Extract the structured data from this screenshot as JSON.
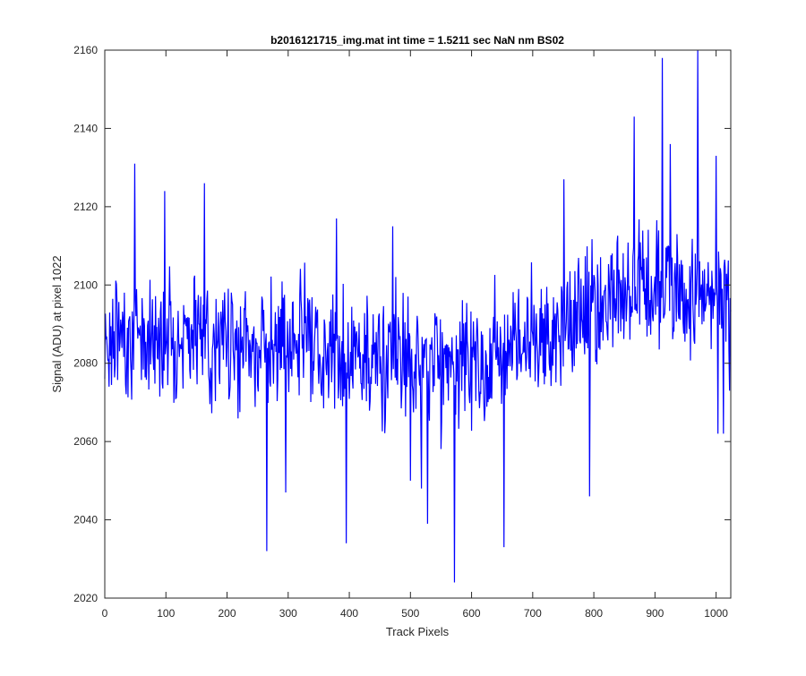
{
  "chart_data": {
    "type": "line",
    "title": "b2016121715_img.mat int time = 1.5211 sec  NaN nm BS02",
    "xlabel": "Track Pixels",
    "ylabel": "Signal (ADU) at pixel 1022",
    "xlim": [
      0,
      1024
    ],
    "ylim": [
      2020,
      2160
    ],
    "xticks": [
      0,
      100,
      200,
      300,
      400,
      500,
      600,
      700,
      800,
      900,
      1000
    ],
    "yticks": [
      2020,
      2040,
      2060,
      2080,
      2100,
      2120,
      2140,
      2160
    ],
    "series": [
      {
        "name": "Signal",
        "color": "#0000ff",
        "segments": [
          {
            "x": [
              0,
              1
            ],
            "y": [
              2076,
              2076
            ]
          },
          {
            "x": [
              1,
              180
            ],
            "y": [
              2087,
              2087
            ],
            "amp": 14,
            "seed": 17
          },
          {
            "x": [
              180,
              350
            ],
            "y": [
              2085,
              2085
            ],
            "amp": 15,
            "seed": 31
          },
          {
            "x": [
              350,
              550
            ],
            "y": [
              2082,
              2080
            ],
            "amp": 15,
            "seed": 53
          },
          {
            "x": [
              550,
              700
            ],
            "y": [
              2080,
              2084
            ],
            "amp": 15,
            "seed": 71
          },
          {
            "x": [
              700,
              860
            ],
            "y": [
              2086,
              2098
            ],
            "amp": 15,
            "seed": 97
          },
          {
            "x": [
              860,
              1024
            ],
            "y": [
              2100,
              2094
            ],
            "amp": 15,
            "seed": 113
          }
        ],
        "peaks": [
          {
            "x": 49,
            "y": 2131
          },
          {
            "x": 98,
            "y": 2124
          },
          {
            "x": 163,
            "y": 2126
          },
          {
            "x": 265,
            "y": 2032
          },
          {
            "x": 296,
            "y": 2047
          },
          {
            "x": 379,
            "y": 2117
          },
          {
            "x": 395,
            "y": 2034
          },
          {
            "x": 471,
            "y": 2115
          },
          {
            "x": 500,
            "y": 2050
          },
          {
            "x": 518,
            "y": 2048
          },
          {
            "x": 528,
            "y": 2039
          },
          {
            "x": 572,
            "y": 2024
          },
          {
            "x": 653,
            "y": 2033
          },
          {
            "x": 751,
            "y": 2127
          },
          {
            "x": 793,
            "y": 2046
          },
          {
            "x": 866,
            "y": 2143
          },
          {
            "x": 912,
            "y": 2158
          },
          {
            "x": 925,
            "y": 2136
          },
          {
            "x": 970,
            "y": 2160
          },
          {
            "x": 1000,
            "y": 2133
          },
          {
            "x": 1003,
            "y": 2062
          },
          {
            "x": 1012,
            "y": 2062
          },
          {
            "x": 1022,
            "y": 2073
          }
        ]
      }
    ]
  }
}
